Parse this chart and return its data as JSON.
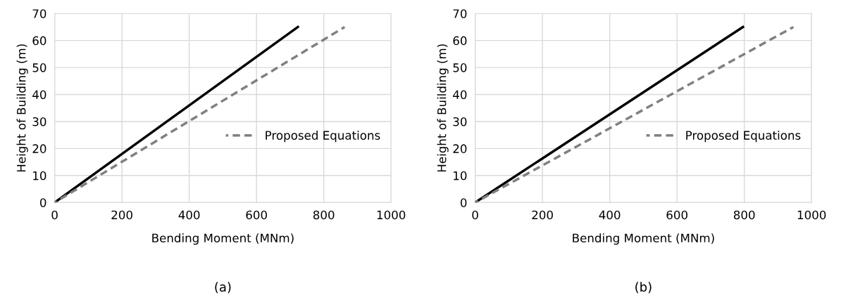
{
  "chart_data": [
    {
      "type": "line",
      "xlabel": "Bending Moment (MNm)",
      "ylabel": "Height of Building (m)",
      "annotations": [
        "(a)"
      ],
      "xlim": [
        0,
        1000
      ],
      "ylim": [
        0,
        70
      ],
      "xticks": [
        0,
        200,
        400,
        600,
        800,
        1000
      ],
      "yticks": [
        0,
        10,
        20,
        30,
        40,
        50,
        60,
        70
      ],
      "grid": true,
      "legend": "right",
      "series": [
        {
          "color": "#000000",
          "line_style": "solid",
          "x": [
            0,
            723
          ],
          "values": [
            0,
            65
          ]
        },
        {
          "name": "Proposed Equations",
          "color": "#808080",
          "line_style": "dashed",
          "x": [
            0,
            862
          ],
          "values": [
            0,
            65
          ]
        }
      ]
    },
    {
      "type": "line",
      "xlabel": "Bending Moment (MNm)",
      "ylabel": "Height of Building (m)",
      "annotations": [
        "(b)"
      ],
      "xlim": [
        0,
        1000
      ],
      "ylim": [
        0,
        70
      ],
      "xticks": [
        0,
        200,
        400,
        600,
        800,
        1000
      ],
      "yticks": [
        0,
        10,
        20,
        30,
        40,
        50,
        60,
        70
      ],
      "grid": true,
      "legend": "right",
      "series": [
        {
          "color": "#000000",
          "line_style": "solid",
          "x": [
            0,
            796
          ],
          "values": [
            0,
            65
          ]
        },
        {
          "name": "Proposed Equations",
          "color": "#808080",
          "line_style": "dashed",
          "x": [
            0,
            946
          ],
          "values": [
            0,
            65
          ]
        }
      ]
    }
  ]
}
